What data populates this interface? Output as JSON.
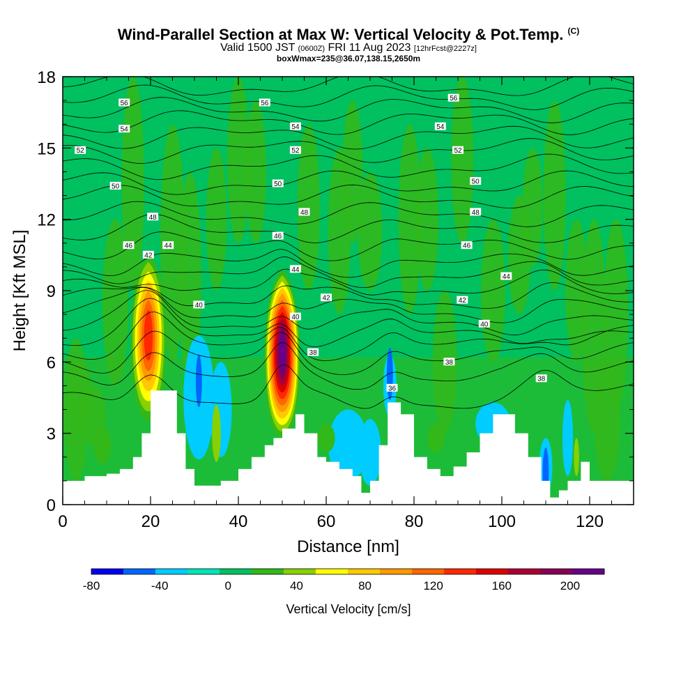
{
  "title": {
    "main": "Wind-Parallel Section at Max W: Vertical Velocity & Pot.Temp.",
    "mark": "(C)",
    "valid_a": "Valid 1500 JST",
    "valid_b": "(0600Z)",
    "valid_c": "FRI 11 Aug 2023",
    "valid_d": "[12hrFcst@2227z]",
    "boxinfo": "boxWmax=235@36.07,138.15,2650m"
  },
  "chart_data": {
    "type": "heatmap",
    "xlabel": "Distance [nm]",
    "ylabel": "Height [Kft MSL]",
    "xlim": [
      0,
      130
    ],
    "ylim": [
      0,
      18
    ],
    "x_ticks": [
      "0",
      "20",
      "40",
      "60",
      "80",
      "100",
      "120"
    ],
    "y_ticks": [
      "0",
      "3",
      "6",
      "9",
      "12",
      "15",
      "18"
    ],
    "colorbar": {
      "label": "Vertical Velocity [cm/s]",
      "range": [
        -80,
        220
      ],
      "step": 20,
      "tick_labels": [
        "-80",
        "-40",
        "0",
        "40",
        "80",
        "120",
        "160",
        "200"
      ],
      "colors": [
        "#0000ee",
        "#0066ff",
        "#00ccff",
        "#00e5b8",
        "#00c060",
        "#33b81a",
        "#88d000",
        "#ffff00",
        "#ffc800",
        "#ff9900",
        "#ff6600",
        "#ff2800",
        "#dd0000",
        "#aa0033",
        "#880055",
        "#660088"
      ]
    },
    "terrain_kft": [
      [
        0,
        1
      ],
      [
        5,
        1.2
      ],
      [
        10,
        1.3
      ],
      [
        13,
        1.5
      ],
      [
        16,
        2
      ],
      [
        18,
        3
      ],
      [
        20,
        4.8
      ],
      [
        23,
        4.8
      ],
      [
        26,
        3
      ],
      [
        28,
        1.5
      ],
      [
        30,
        0.8
      ],
      [
        33,
        0.8
      ],
      [
        36,
        1
      ],
      [
        40,
        1.5
      ],
      [
        43,
        2
      ],
      [
        46,
        2.5
      ],
      [
        48,
        2.8
      ],
      [
        50,
        3.2
      ],
      [
        53,
        3.8
      ],
      [
        55,
        3
      ],
      [
        58,
        2
      ],
      [
        60,
        1.8
      ],
      [
        63,
        1.5
      ],
      [
        66,
        1.2
      ],
      [
        68,
        0.5
      ],
      [
        70,
        1
      ],
      [
        72,
        2.5
      ],
      [
        74,
        4.3
      ],
      [
        77,
        3.8
      ],
      [
        80,
        2
      ],
      [
        83,
        1.5
      ],
      [
        86,
        1.2
      ],
      [
        89,
        1.6
      ],
      [
        92,
        2.2
      ],
      [
        95,
        3
      ],
      [
        98,
        3.8
      ],
      [
        100,
        3.8
      ],
      [
        103,
        3
      ],
      [
        106,
        2
      ],
      [
        109,
        1
      ],
      [
        111,
        0.3
      ],
      [
        113,
        0.6
      ],
      [
        115,
        1
      ],
      [
        118,
        1.8
      ],
      [
        120,
        1
      ],
      [
        122,
        1
      ],
      [
        126,
        1
      ],
      [
        128,
        1
      ],
      [
        130,
        0.7
      ]
    ],
    "w_cells": [
      {
        "x": 19.5,
        "z": 7.2,
        "w": 150,
        "label": "updraft"
      },
      {
        "x": 50,
        "z": 6.5,
        "w": 235,
        "label": "updraft"
      },
      {
        "x": 31,
        "z": 5.2,
        "w": -60,
        "label": "downdraft"
      },
      {
        "x": 74.5,
        "z": 5.5,
        "w": -50,
        "label": "downdraft"
      },
      {
        "x": 110,
        "z": 1.3,
        "w": -45,
        "label": "downdraft"
      }
    ],
    "theta_labels": [
      {
        "v": "56",
        "x": 14,
        "z": 16.9
      },
      {
        "v": "56",
        "x": 46,
        "z": 16.9
      },
      {
        "v": "56",
        "x": 89,
        "z": 17.1
      },
      {
        "v": "54",
        "x": 14,
        "z": 15.8
      },
      {
        "v": "54",
        "x": 53,
        "z": 15.9
      },
      {
        "v": "54",
        "x": 86,
        "z": 15.9
      },
      {
        "v": "52",
        "x": 4,
        "z": 14.9
      },
      {
        "v": "52",
        "x": 53,
        "z": 14.9
      },
      {
        "v": "52",
        "x": 90,
        "z": 14.9
      },
      {
        "v": "50",
        "x": 12,
        "z": 13.4
      },
      {
        "v": "50",
        "x": 49,
        "z": 13.5
      },
      {
        "v": "50",
        "x": 94,
        "z": 13.6
      },
      {
        "v": "48",
        "x": 20.5,
        "z": 12.1
      },
      {
        "v": "48",
        "x": 55,
        "z": 12.3
      },
      {
        "v": "48",
        "x": 94,
        "z": 12.3
      },
      {
        "v": "46",
        "x": 15,
        "z": 10.9
      },
      {
        "v": "46",
        "x": 49,
        "z": 11.3
      },
      {
        "v": "46",
        "x": 92,
        "z": 10.9
      },
      {
        "v": "44",
        "x": 24,
        "z": 10.9
      },
      {
        "v": "44",
        "x": 53,
        "z": 9.9
      },
      {
        "v": "44",
        "x": 101,
        "z": 9.6
      },
      {
        "v": "42",
        "x": 19.5,
        "z": 10.5
      },
      {
        "v": "42",
        "x": 60,
        "z": 8.7
      },
      {
        "v": "42",
        "x": 91,
        "z": 8.6
      },
      {
        "v": "40",
        "x": 31,
        "z": 8.4
      },
      {
        "v": "40",
        "x": 53,
        "z": 7.9
      },
      {
        "v": "40",
        "x": 96,
        "z": 7.6
      },
      {
        "v": "38",
        "x": 57,
        "z": 6.4
      },
      {
        "v": "38",
        "x": 88,
        "z": 6.0
      },
      {
        "v": "38",
        "x": 109,
        "z": 5.3
      },
      {
        "v": "36",
        "x": 75,
        "z": 4.9
      }
    ]
  }
}
